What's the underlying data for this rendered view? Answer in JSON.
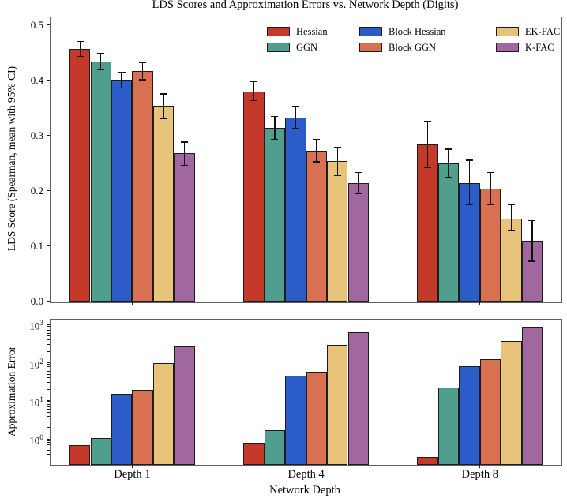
{
  "title": "LDS Scores and Approximation Errors vs. Network Depth (Digits)",
  "chart_data": {
    "type": "bar",
    "categories": [
      "Depth 1",
      "Depth 4",
      "Depth 8"
    ],
    "xlabel": "Network Depth",
    "legend_position": "upper right, 3 columns, frameless",
    "panels": [
      {
        "id": "lds",
        "ylabel": "LDS Score (Spearman, mean with 95% CI)",
        "yscale": "linear",
        "ylim": [
          0.0,
          0.515
        ],
        "yticks": [
          {
            "value": 0.0,
            "label": "0.0"
          },
          {
            "value": 0.1,
            "label": "0.1"
          },
          {
            "value": 0.2,
            "label": "0.2"
          },
          {
            "value": 0.3,
            "label": "0.3"
          },
          {
            "value": 0.4,
            "label": "0.4"
          },
          {
            "value": 0.5,
            "label": "0.5"
          }
        ],
        "error_bars": "95% confidence intervals with caps"
      },
      {
        "id": "error",
        "ylabel": "Approximation Error",
        "yscale": "log",
        "ylim": [
          0.22,
          1350
        ],
        "yticks": [
          {
            "value": 1,
            "base": "10",
            "exp": "0"
          },
          {
            "value": 10,
            "base": "10",
            "exp": "1"
          },
          {
            "value": 100,
            "base": "10",
            "exp": "2"
          },
          {
            "value": 1000,
            "base": "10",
            "exp": "3"
          }
        ]
      }
    ],
    "series": [
      {
        "name": "Hessian",
        "color": "#c5392a",
        "lds_mean": [
          0.456,
          0.38,
          0.283
        ],
        "lds_ci_low": [
          0.443,
          0.363,
          0.242
        ],
        "lds_ci_high": [
          0.47,
          0.397,
          0.325
        ],
        "approx_error": [
          0.68,
          0.8,
          0.34
        ]
      },
      {
        "name": "GGN",
        "color": "#4f9e8e",
        "lds_mean": [
          0.434,
          0.314,
          0.249
        ],
        "lds_ci_low": [
          0.419,
          0.293,
          0.224
        ],
        "lds_ci_high": [
          0.448,
          0.334,
          0.275
        ],
        "approx_error": [
          1.05,
          1.75,
          22
        ]
      },
      {
        "name": "Block Hessian",
        "color": "#2b5cc8",
        "lds_mean": [
          0.401,
          0.332,
          0.214
        ],
        "lds_ci_low": [
          0.386,
          0.313,
          0.174
        ],
        "lds_ci_high": [
          0.414,
          0.353,
          0.255
        ],
        "approx_error": [
          15,
          45,
          83
        ]
      },
      {
        "name": "Block GGN",
        "color": "#d87152",
        "lds_mean": [
          0.416,
          0.272,
          0.203
        ],
        "lds_ci_low": [
          0.401,
          0.252,
          0.174
        ],
        "lds_ci_high": [
          0.432,
          0.292,
          0.233
        ],
        "approx_error": [
          19.5,
          57,
          127
        ]
      },
      {
        "name": "EK-FAC",
        "color": "#e7c47a",
        "lds_mean": [
          0.353,
          0.253,
          0.15
        ],
        "lds_ci_low": [
          0.331,
          0.227,
          0.127
        ],
        "lds_ci_high": [
          0.375,
          0.278,
          0.174
        ],
        "approx_error": [
          97,
          290,
          374
        ]
      },
      {
        "name": "K-FAC",
        "color": "#a0689e",
        "lds_mean": [
          0.268,
          0.213,
          0.109
        ],
        "lds_ci_low": [
          0.246,
          0.194,
          0.072
        ],
        "lds_ci_high": [
          0.288,
          0.233,
          0.146
        ],
        "approx_error": [
          275,
          620,
          895
        ]
      }
    ]
  }
}
